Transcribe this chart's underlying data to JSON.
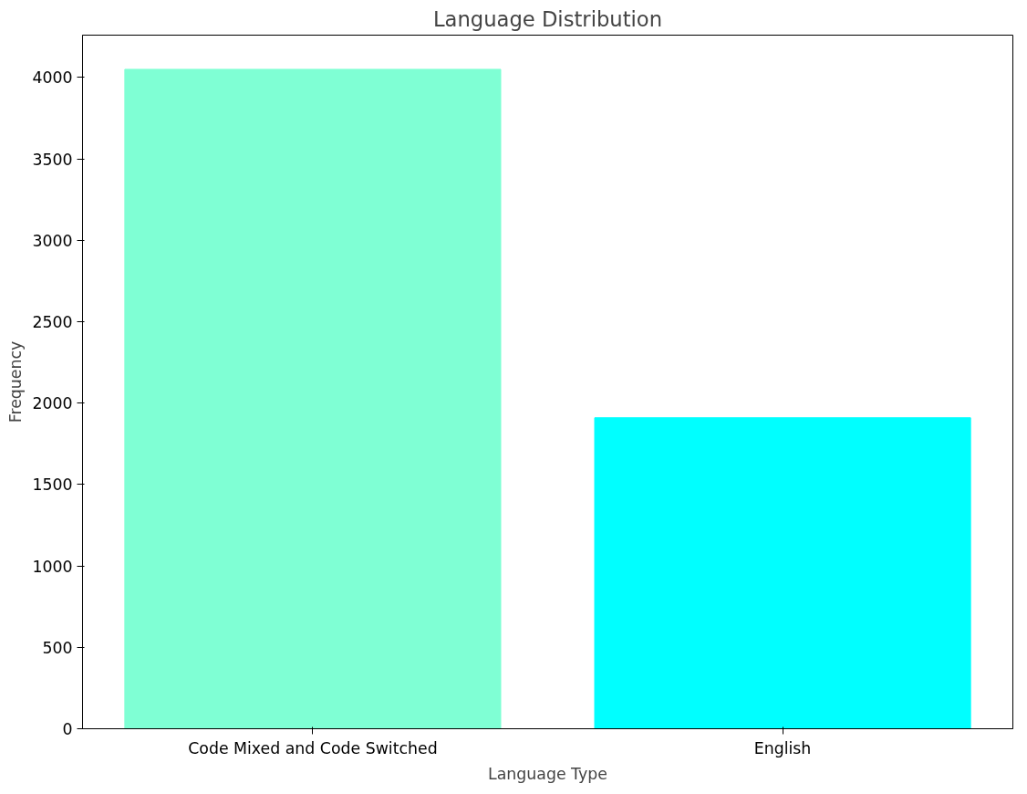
{
  "chart_data": {
    "type": "bar",
    "title": "Language Distribution",
    "xlabel": "Language Type",
    "ylabel": "Frequency",
    "categories": [
      "Code Mixed and Code Switched",
      "English"
    ],
    "values": [
      4050,
      1910
    ],
    "colors": [
      "#7fffd4",
      "#00ffff"
    ],
    "ylim": [
      0,
      4260
    ],
    "yticks": [
      0,
      500,
      1000,
      1500,
      2000,
      2500,
      3000,
      3500,
      4000
    ]
  }
}
